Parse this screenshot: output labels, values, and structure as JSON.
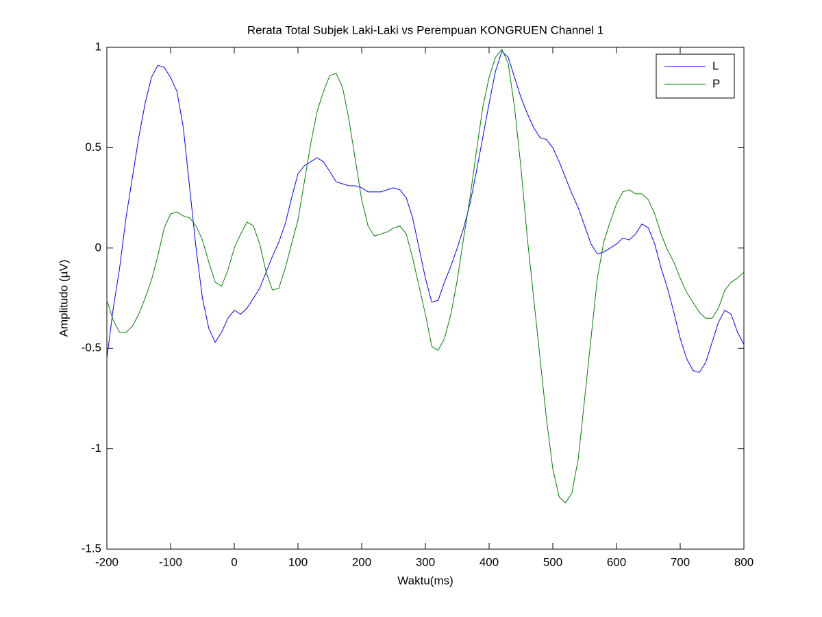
{
  "chart_data": {
    "type": "line",
    "title": "Rerata Total Subjek Laki-Laki vs Perempuan KONGRUEN Channel 1",
    "x_label": "Waktu(ms)",
    "y_label": "Amplitudo (µV)",
    "x": [
      -200,
      -190,
      -180,
      -170,
      -160,
      -150,
      -140,
      -130,
      -120,
      -110,
      -100,
      -90,
      -80,
      -70,
      -60,
      -50,
      -40,
      -30,
      -20,
      -10,
      0,
      10,
      20,
      30,
      40,
      50,
      60,
      70,
      80,
      90,
      100,
      110,
      120,
      130,
      140,
      150,
      160,
      170,
      180,
      190,
      200,
      210,
      220,
      230,
      240,
      250,
      260,
      270,
      280,
      290,
      300,
      310,
      320,
      330,
      340,
      350,
      360,
      370,
      380,
      390,
      400,
      410,
      420,
      430,
      440,
      450,
      460,
      470,
      480,
      490,
      500,
      510,
      520,
      530,
      540,
      550,
      560,
      570,
      580,
      590,
      600,
      610,
      620,
      630,
      640,
      650,
      660,
      670,
      680,
      690,
      700,
      710,
      720,
      730,
      740,
      750,
      760,
      770,
      780,
      790,
      800
    ],
    "series": [
      {
        "name": "L",
        "color": "#0000ff",
        "values": [
          -0.55,
          -0.3,
          -0.1,
          0.15,
          0.35,
          0.55,
          0.72,
          0.85,
          0.91,
          0.9,
          0.85,
          0.78,
          0.6,
          0.3,
          0.0,
          -0.25,
          -0.4,
          -0.47,
          -0.42,
          -0.35,
          -0.31,
          -0.33,
          -0.3,
          -0.25,
          -0.2,
          -0.12,
          -0.04,
          0.03,
          0.12,
          0.25,
          0.37,
          0.41,
          0.43,
          0.45,
          0.43,
          0.38,
          0.33,
          0.32,
          0.31,
          0.31,
          0.3,
          0.28,
          0.28,
          0.28,
          0.29,
          0.3,
          0.29,
          0.25,
          0.15,
          0.0,
          -0.15,
          -0.27,
          -0.26,
          -0.17,
          -0.09,
          0.0,
          0.1,
          0.22,
          0.38,
          0.55,
          0.72,
          0.88,
          0.98,
          0.95,
          0.85,
          0.75,
          0.67,
          0.6,
          0.55,
          0.54,
          0.5,
          0.43,
          0.35,
          0.27,
          0.2,
          0.11,
          0.02,
          -0.03,
          -0.02,
          0.0,
          0.02,
          0.05,
          0.04,
          0.07,
          0.12,
          0.1,
          0.02,
          -0.1,
          -0.2,
          -0.32,
          -0.45,
          -0.55,
          -0.61,
          -0.62,
          -0.57,
          -0.47,
          -0.37,
          -0.31,
          -0.33,
          -0.42,
          -0.48
        ]
      },
      {
        "name": "P",
        "color": "#008000",
        "values": [
          -0.26,
          -0.36,
          -0.42,
          -0.42,
          -0.39,
          -0.33,
          -0.25,
          -0.16,
          -0.04,
          0.1,
          0.17,
          0.18,
          0.16,
          0.15,
          0.11,
          0.04,
          -0.07,
          -0.17,
          -0.19,
          -0.11,
          0.0,
          0.07,
          0.13,
          0.11,
          0.02,
          -0.12,
          -0.21,
          -0.2,
          -0.1,
          0.02,
          0.14,
          0.33,
          0.52,
          0.68,
          0.78,
          0.86,
          0.87,
          0.8,
          0.64,
          0.44,
          0.24,
          0.11,
          0.06,
          0.07,
          0.08,
          0.1,
          0.11,
          0.07,
          -0.05,
          -0.19,
          -0.33,
          -0.49,
          -0.51,
          -0.45,
          -0.33,
          -0.16,
          0.05,
          0.25,
          0.48,
          0.7,
          0.85,
          0.95,
          0.99,
          0.92,
          0.7,
          0.4,
          0.05,
          -0.25,
          -0.55,
          -0.85,
          -1.1,
          -1.24,
          -1.27,
          -1.22,
          -1.05,
          -0.75,
          -0.45,
          -0.15,
          0.03,
          0.13,
          0.22,
          0.28,
          0.29,
          0.27,
          0.27,
          0.24,
          0.17,
          0.07,
          -0.01,
          -0.07,
          -0.15,
          -0.22,
          -0.27,
          -0.32,
          -0.35,
          -0.35,
          -0.3,
          -0.21,
          -0.17,
          -0.15,
          -0.12
        ]
      }
    ],
    "xlim": [
      -200,
      800
    ],
    "xticks": [
      -200,
      -100,
      0,
      100,
      200,
      300,
      400,
      500,
      600,
      700,
      800
    ],
    "ylim": [
      -1.5,
      1
    ],
    "yticks": [
      -1.5,
      -1,
      -0.5,
      0,
      0.5,
      1
    ],
    "grid": false,
    "legend": "northeast"
  }
}
